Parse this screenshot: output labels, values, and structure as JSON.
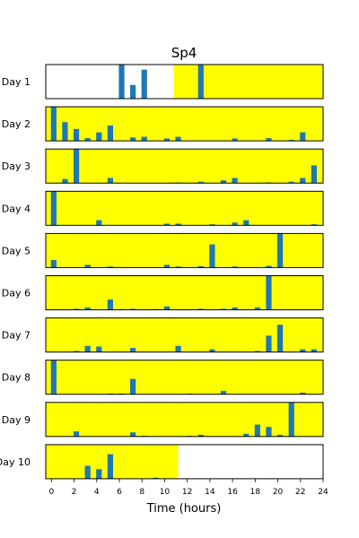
{
  "chart_data": {
    "type": "bar",
    "title": "Sp4",
    "xlabel": "Time (hours)",
    "xlim": [
      -0.5,
      24
    ],
    "x_ticks": [
      0,
      2,
      4,
      6,
      8,
      10,
      12,
      14,
      16,
      18,
      20,
      22,
      24
    ],
    "colors": {
      "bar": "#1f77b4",
      "highlight": "#ffff00",
      "frame": "#000000"
    },
    "days": [
      {
        "label": "Day 1",
        "highlight": [
          10.8,
          24
        ],
        "bars": [
          [
            6.2,
            1.0
          ],
          [
            7.2,
            0.4
          ],
          [
            8.2,
            0.85
          ],
          [
            13.2,
            1.0
          ]
        ]
      },
      {
        "label": "Day 2",
        "highlight": [
          -0.5,
          24
        ],
        "bars": [
          [
            0.2,
            1.0
          ],
          [
            1.2,
            0.55
          ],
          [
            2.2,
            0.35
          ],
          [
            3.2,
            0.08
          ],
          [
            4.2,
            0.25
          ],
          [
            5.2,
            0.45
          ],
          [
            7.2,
            0.1
          ],
          [
            8.2,
            0.12
          ],
          [
            10.2,
            0.07
          ],
          [
            11.2,
            0.12
          ],
          [
            16.2,
            0.07
          ],
          [
            19.2,
            0.08
          ],
          [
            21.2,
            0.03
          ],
          [
            22.2,
            0.25
          ]
        ]
      },
      {
        "label": "Day 3",
        "highlight": [
          -0.5,
          24
        ],
        "bars": [
          [
            1.2,
            0.12
          ],
          [
            2.2,
            1.0
          ],
          [
            5.2,
            0.15
          ],
          [
            11.2,
            0.02
          ],
          [
            13.2,
            0.04
          ],
          [
            15.2,
            0.08
          ],
          [
            16.2,
            0.15
          ],
          [
            19.2,
            0.02
          ],
          [
            21.2,
            0.04
          ],
          [
            22.2,
            0.15
          ],
          [
            23.2,
            0.52
          ]
        ]
      },
      {
        "label": "Day 4",
        "highlight": [
          -0.5,
          24
        ],
        "bars": [
          [
            0.2,
            1.0
          ],
          [
            4.2,
            0.15
          ],
          [
            10.2,
            0.05
          ],
          [
            11.2,
            0.05
          ],
          [
            14.2,
            0.03
          ],
          [
            16.2,
            0.08
          ],
          [
            17.2,
            0.15
          ],
          [
            23.2,
            0.03
          ]
        ]
      },
      {
        "label": "Day 5",
        "highlight": [
          -0.5,
          24
        ],
        "bars": [
          [
            0.2,
            0.22
          ],
          [
            3.2,
            0.08
          ],
          [
            5.2,
            0.03
          ],
          [
            10.2,
            0.08
          ],
          [
            11.2,
            0.03
          ],
          [
            13.2,
            0.04
          ],
          [
            14.2,
            0.68
          ],
          [
            16.2,
            0.03
          ],
          [
            19.2,
            0.05
          ],
          [
            20.2,
            1.0
          ]
        ]
      },
      {
        "label": "Day 6",
        "highlight": [
          -0.5,
          24
        ],
        "bars": [
          [
            2.2,
            0.03
          ],
          [
            3.2,
            0.07
          ],
          [
            5.2,
            0.3
          ],
          [
            6.2,
            0.02
          ],
          [
            7.2,
            0.03
          ],
          [
            9.2,
            0.02
          ],
          [
            10.2,
            0.1
          ],
          [
            13.2,
            0.03
          ],
          [
            15.2,
            0.03
          ],
          [
            16.2,
            0.07
          ],
          [
            18.2,
            0.07
          ],
          [
            19.2,
            1.0
          ]
        ]
      },
      {
        "label": "Day 7",
        "highlight": [
          -0.5,
          24
        ],
        "bars": [
          [
            2.2,
            0.03
          ],
          [
            3.2,
            0.18
          ],
          [
            4.2,
            0.16
          ],
          [
            7.2,
            0.12
          ],
          [
            11.2,
            0.18
          ],
          [
            14.2,
            0.08
          ],
          [
            18.2,
            0.03
          ],
          [
            19.2,
            0.48
          ],
          [
            20.2,
            0.8
          ],
          [
            22.2,
            0.08
          ],
          [
            23.2,
            0.08
          ]
        ]
      },
      {
        "label": "Day 8",
        "highlight": [
          -0.5,
          24
        ],
        "bars": [
          [
            0.2,
            1.0
          ],
          [
            5.2,
            0.02
          ],
          [
            6.2,
            0.02
          ],
          [
            7.2,
            0.45
          ],
          [
            12.2,
            0.02
          ],
          [
            15.2,
            0.1
          ],
          [
            22.2,
            0.05
          ]
        ]
      },
      {
        "label": "Day 9",
        "highlight": [
          -0.5,
          24
        ],
        "bars": [
          [
            2.2,
            0.15
          ],
          [
            7.2,
            0.12
          ],
          [
            8.2,
            0.02
          ],
          [
            12.2,
            0.02
          ],
          [
            13.2,
            0.05
          ],
          [
            17.2,
            0.08
          ],
          [
            18.2,
            0.35
          ],
          [
            19.2,
            0.28
          ],
          [
            20.2,
            0.05
          ],
          [
            21.2,
            1.0
          ]
        ]
      },
      {
        "label": "Day 10",
        "highlight": [
          -0.5,
          11.2
        ],
        "bars": [
          [
            3.2,
            0.38
          ],
          [
            4.2,
            0.28
          ],
          [
            5.2,
            0.72
          ],
          [
            9.2,
            0.03
          ]
        ]
      }
    ]
  }
}
